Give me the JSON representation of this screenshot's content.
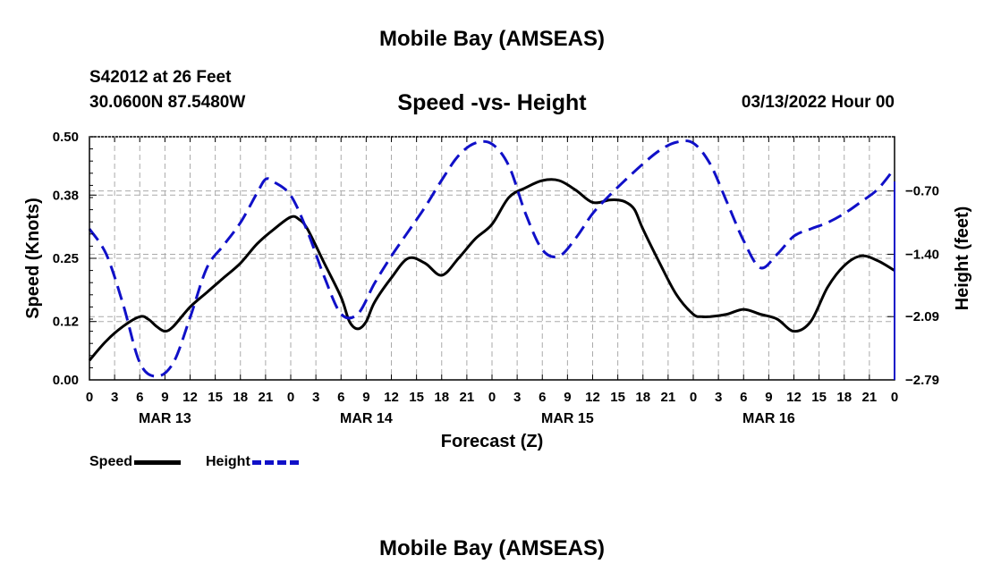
{
  "titles": {
    "top": "Mobile Bay (AMSEAS)",
    "bottom": "Mobile Bay (AMSEAS)",
    "station": "S42012 at 26 Feet",
    "coords": "30.0600N  87.5480W",
    "subtitle": "Speed -vs- Height",
    "datetime": "03/13/2022 Hour 00"
  },
  "chart_data": {
    "type": "line",
    "title": "Speed -vs- Height",
    "xlabel": "Forecast (Z)",
    "ylabel": "Speed (Knots)",
    "y2label": "Height (feet)",
    "x_hours_range": [
      0,
      96
    ],
    "x_tick_step_hours": 3,
    "x_tick_labels": [
      "0",
      "3",
      "6",
      "9",
      "12",
      "15",
      "18",
      "21",
      "0",
      "3",
      "6",
      "9",
      "12",
      "15",
      "18",
      "21",
      "0",
      "3",
      "6",
      "9",
      "12",
      "15",
      "18",
      "21",
      "0",
      "3",
      "6",
      "9",
      "12",
      "15",
      "18",
      "21",
      "0"
    ],
    "day_labels": [
      {
        "label": "MAR 13",
        "hour": 9
      },
      {
        "label": "MAR 14",
        "hour": 33
      },
      {
        "label": "MAR 15",
        "hour": 57
      },
      {
        "label": "MAR 16",
        "hour": 81
      }
    ],
    "ylim": [
      0,
      0.5
    ],
    "y_ticks": [
      0.0,
      0.12,
      0.25,
      0.38,
      0.5
    ],
    "y_tick_labels": [
      "0.00",
      "0.12",
      "0.25",
      "0.38",
      "0.50"
    ],
    "y2lim": [
      -2.79,
      -0.1
    ],
    "y2_ticks": [
      -2.79,
      -2.09,
      -1.4,
      -0.7
    ],
    "y2_tick_labels": [
      "−2.79",
      "−2.09",
      "−1.40",
      "−0.70"
    ],
    "grid": true,
    "legend_position": "bottom-left",
    "series": [
      {
        "name": "Speed",
        "axis": "left",
        "color": "#000000",
        "style": "solid",
        "x": [
          0,
          2,
          4,
          6,
          7,
          8,
          9,
          10,
          12,
          14,
          16,
          18,
          20,
          22,
          24,
          25,
          26,
          28,
          30,
          31,
          32,
          33,
          34,
          36,
          38,
          40,
          42,
          44,
          46,
          48,
          50,
          52,
          54,
          56,
          58,
          60,
          62,
          63,
          64,
          65,
          66,
          68,
          70,
          72,
          73,
          74,
          76,
          78,
          80,
          82,
          84,
          86,
          88,
          90,
          92,
          94,
          96
        ],
        "values": [
          0.04,
          0.08,
          0.11,
          0.13,
          0.125,
          0.11,
          0.1,
          0.11,
          0.15,
          0.18,
          0.21,
          0.24,
          0.28,
          0.31,
          0.335,
          0.33,
          0.31,
          0.24,
          0.17,
          0.12,
          0.105,
          0.12,
          0.16,
          0.21,
          0.25,
          0.24,
          0.215,
          0.25,
          0.29,
          0.32,
          0.375,
          0.395,
          0.41,
          0.41,
          0.39,
          0.365,
          0.37,
          0.37,
          0.365,
          0.35,
          0.31,
          0.24,
          0.175,
          0.135,
          0.13,
          0.13,
          0.135,
          0.145,
          0.135,
          0.125,
          0.1,
          0.12,
          0.19,
          0.235,
          0.255,
          0.245,
          0.225
        ]
      },
      {
        "name": "Height",
        "axis": "right",
        "color": "#1010c8",
        "style": "dashed",
        "x": [
          0,
          2,
          4,
          6,
          8,
          10,
          12,
          14,
          16,
          18,
          20,
          21,
          22,
          24,
          26,
          28,
          30,
          32,
          34,
          36,
          38,
          40,
          42,
          44,
          46,
          48,
          50,
          52,
          54,
          56,
          58,
          60,
          62,
          64,
          66,
          68,
          70,
          72,
          74,
          76,
          78,
          80,
          82,
          84,
          86,
          88,
          90,
          92,
          94,
          96
        ],
        "values": [
          -1.12,
          -1.4,
          -1.95,
          -2.6,
          -2.75,
          -2.6,
          -2.1,
          -1.55,
          -1.3,
          -1.05,
          -0.72,
          -0.57,
          -0.6,
          -0.75,
          -1.15,
          -1.65,
          -2.06,
          -2.06,
          -1.72,
          -1.42,
          -1.15,
          -0.88,
          -0.58,
          -0.31,
          -0.17,
          -0.18,
          -0.42,
          -0.95,
          -1.35,
          -1.42,
          -1.22,
          -0.95,
          -0.75,
          -0.57,
          -0.4,
          -0.25,
          -0.16,
          -0.17,
          -0.4,
          -0.82,
          -1.25,
          -1.55,
          -1.4,
          -1.2,
          -1.12,
          -1.05,
          -0.95,
          -0.82,
          -0.68,
          -0.45
        ]
      }
    ],
    "legend": [
      {
        "label": "Speed",
        "color": "#000000",
        "style": "solid"
      },
      {
        "label": "Height",
        "color": "#1010c8",
        "style": "dashed"
      }
    ]
  }
}
